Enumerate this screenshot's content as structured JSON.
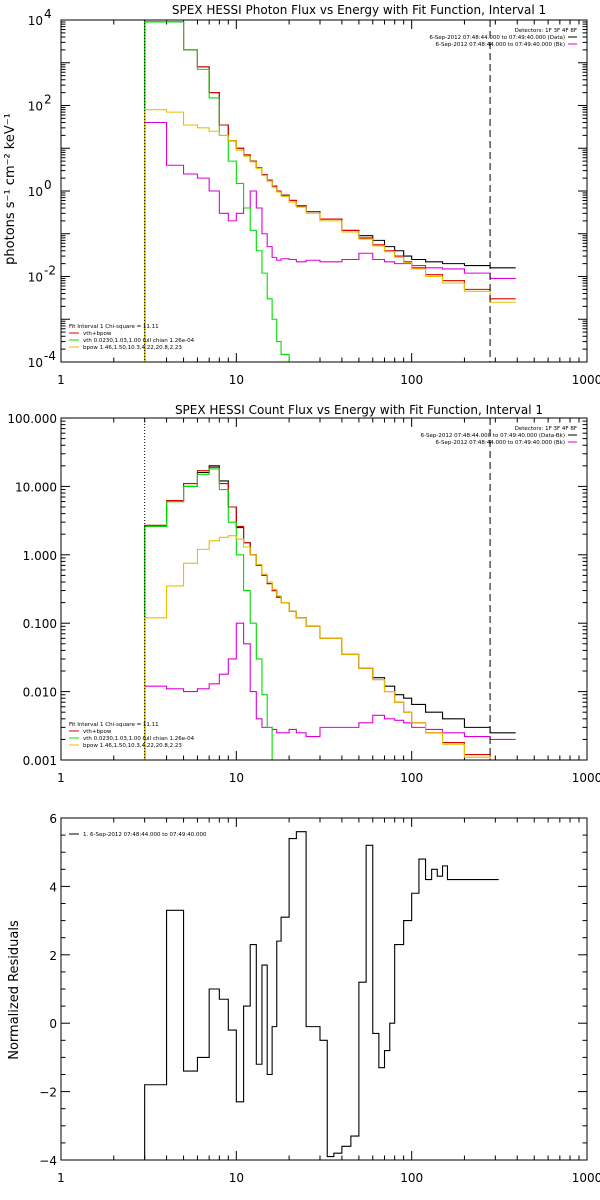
{
  "colors": {
    "total": "#000000",
    "vth_bpow": "#dd0000",
    "vth": "#00dd00",
    "bpow": "#e6c000",
    "background": "#dd00dd"
  },
  "chart_data": [
    {
      "type": "line",
      "title": "SPEX HESSI Photon Flux vs Energy with Fit Function, Interval 1",
      "ylabel": "photons s⁻¹ cm⁻² keV⁻¹",
      "xscale": "log",
      "yscale": "log",
      "xlim": [
        1,
        1000
      ],
      "ylim": [
        0.0001,
        10000
      ],
      "xticks": [
        {
          "v": 1,
          "t": "1"
        },
        {
          "v": 10,
          "t": "10"
        },
        {
          "v": 100,
          "t": "100"
        },
        {
          "v": 1000,
          "t": "1000"
        }
      ],
      "yticks": [
        {
          "v": 0.0001,
          "m": "10",
          "e": "-4"
        },
        {
          "v": 0.01,
          "m": "10",
          "e": "-2"
        },
        {
          "v": 1,
          "m": "10",
          "e": "0"
        },
        {
          "v": 100,
          "m": "10",
          "e": "2"
        },
        {
          "v": 10000,
          "m": "10",
          "e": "4"
        }
      ],
      "vlines": [
        {
          "x": 3,
          "style": "dotted",
          "color": "#000000"
        },
        {
          "x": 280,
          "style": "dashed",
          "color": "#000000"
        }
      ],
      "legend_right": {
        "header": "Detectors: 1F 3F 4F 8F",
        "entries": [
          {
            "text": "6-Sep-2012 07:48:44.000 to 07:49:40.000 (Data)",
            "color": "#000000"
          },
          {
            "text": "6-Sep-2012 07:48:44.000 to 07:49:40.000 (Bk)",
            "color": "#dd00dd"
          }
        ]
      },
      "legend_left": {
        "header": "Fit Interval 1    Chi-square = 11.11",
        "entries": [
          {
            "text": "vth+bpow",
            "color": "#dd0000"
          },
          {
            "text": "vth 0.0230,1.03,1.00  full chian 1.26e-04",
            "color": "#00dd00"
          },
          {
            "text": "bpow 1.46,1.50,10.3,4.22,20.8,2.23",
            "color": "#e6c000"
          }
        ]
      },
      "series": [
        {
          "key": "background",
          "x": [
            3,
            4,
            5,
            6,
            7,
            8,
            9,
            10,
            11,
            12,
            13,
            14,
            15,
            16,
            17,
            18,
            20,
            22,
            25,
            30,
            40,
            50,
            60,
            70,
            80,
            90,
            100,
            120,
            150,
            200,
            280
          ],
          "y": [
            40,
            4,
            2.5,
            2,
            1,
            0.3,
            0.2,
            0.3,
            0.4,
            1,
            0.4,
            0.1,
            0.05,
            0.028,
            0.024,
            0.026,
            0.025,
            0.022,
            0.024,
            0.022,
            0.025,
            0.035,
            0.025,
            0.022,
            0.02,
            0.02,
            0.018,
            0.016,
            0.015,
            0.012,
            0.009
          ]
        },
        {
          "key": "total",
          "x": [
            3,
            4,
            5,
            6,
            7,
            8,
            9,
            10,
            11,
            12,
            13,
            14,
            15,
            16,
            17,
            18,
            20,
            22,
            25,
            30,
            40,
            50,
            60,
            70,
            80,
            90,
            100,
            120,
            150,
            200,
            280
          ],
          "y": [
            9000,
            9000,
            2000,
            800,
            200,
            35,
            15,
            10,
            7,
            5,
            3.5,
            2.4,
            1.8,
            1.3,
            1.0,
            0.8,
            0.6,
            0.45,
            0.33,
            0.22,
            0.12,
            0.09,
            0.07,
            0.05,
            0.04,
            0.03,
            0.025,
            0.022,
            0.02,
            0.018,
            0.016
          ]
        },
        {
          "key": "vth_bpow",
          "x": [
            3,
            4,
            5,
            6,
            7,
            8,
            9,
            10,
            11,
            12,
            13,
            14,
            15,
            16,
            17,
            18,
            20,
            22,
            25,
            30,
            40,
            50,
            60,
            70,
            80,
            90,
            100,
            120,
            150,
            200,
            280
          ],
          "y": [
            9000,
            9000,
            2000,
            800,
            200,
            35,
            15,
            10,
            7,
            5,
            3.5,
            2.4,
            1.8,
            1.3,
            1.0,
            0.8,
            0.6,
            0.45,
            0.33,
            0.22,
            0.12,
            0.08,
            0.055,
            0.04,
            0.03,
            0.022,
            0.016,
            0.011,
            0.008,
            0.005,
            0.003
          ]
        },
        {
          "key": "vth",
          "x": [
            3,
            4,
            5,
            6,
            7,
            8,
            9,
            10,
            11,
            12,
            13,
            14,
            15,
            16,
            17,
            18,
            20
          ],
          "y": [
            9000,
            9000,
            2000,
            700,
            150,
            20,
            5,
            1.5,
            0.4,
            0.12,
            0.04,
            0.012,
            0.003,
            0.001,
            0.0003,
            0.00015,
            0.0001
          ]
        },
        {
          "key": "bpow",
          "x": [
            3,
            4,
            5,
            6,
            7,
            8,
            9,
            10,
            11,
            12,
            13,
            14,
            15,
            16,
            17,
            18,
            20,
            22,
            25,
            30,
            40,
            50,
            60,
            70,
            80,
            90,
            100,
            120,
            150,
            200,
            280
          ],
          "y": [
            80,
            70,
            35,
            30,
            25,
            20,
            15,
            9,
            6.5,
            4.8,
            3.4,
            2.3,
            1.7,
            1.2,
            0.95,
            0.75,
            0.55,
            0.42,
            0.3,
            0.2,
            0.11,
            0.075,
            0.052,
            0.038,
            0.028,
            0.021,
            0.015,
            0.01,
            0.007,
            0.0045,
            0.0025
          ]
        }
      ]
    },
    {
      "type": "line",
      "title": "SPEX HESSI Count Flux vs Energy with Fit Function, Interval 1",
      "ylabel": "",
      "xscale": "log",
      "yscale": "log",
      "xlim": [
        1,
        1000
      ],
      "ylim": [
        0.001,
        100
      ],
      "xticks": [
        {
          "v": 1,
          "t": "1"
        },
        {
          "v": 10,
          "t": "10"
        },
        {
          "v": 100,
          "t": "100"
        },
        {
          "v": 1000,
          "t": "1000"
        }
      ],
      "yticks": [
        {
          "v": 0.001,
          "t": "0.001"
        },
        {
          "v": 0.01,
          "t": "0.010"
        },
        {
          "v": 0.1,
          "t": "0.100"
        },
        {
          "v": 1,
          "t": "1.000"
        },
        {
          "v": 10,
          "t": "10.000"
        },
        {
          "v": 100,
          "t": "100.000"
        }
      ],
      "vlines": [
        {
          "x": 3,
          "style": "dotted",
          "color": "#000000"
        },
        {
          "x": 280,
          "style": "dashed",
          "color": "#000000"
        }
      ],
      "legend_right": {
        "header": "Detectors: 1F 3F 4F 8F",
        "entries": [
          {
            "text": "6-Sep-2012 07:48:44.000 to 07:49:40.000 (Data-Bk)",
            "color": "#000000"
          },
          {
            "text": "6-Sep-2012 07:48:44.000 to 07:49:40.000 (Bk)",
            "color": "#dd00dd"
          }
        ]
      },
      "legend_left": {
        "header": "Fit Interval 1    Chi-square = 11.11",
        "entries": [
          {
            "text": "vth+bpow",
            "color": "#dd0000"
          },
          {
            "text": "vth 0.0230,1.03,1.00  full chian 1.26e-04",
            "color": "#00dd00"
          },
          {
            "text": "bpow 1.46,1.50,10.3,4.22,20.8,2.23",
            "color": "#e6c000"
          }
        ]
      },
      "series": [
        {
          "key": "background",
          "x": [
            3,
            4,
            5,
            6,
            7,
            8,
            9,
            10,
            11,
            12,
            13,
            14,
            15,
            16,
            17,
            18,
            20,
            22,
            25,
            30,
            40,
            50,
            60,
            70,
            80,
            90,
            100,
            120,
            150,
            200,
            280
          ],
          "y": [
            0.012,
            0.011,
            0.01,
            0.011,
            0.013,
            0.018,
            0.03,
            0.1,
            0.05,
            0.01,
            0.004,
            0.003,
            0.003,
            0.0028,
            0.0025,
            0.0025,
            0.0028,
            0.0025,
            0.0022,
            0.003,
            0.003,
            0.0035,
            0.0045,
            0.004,
            0.0038,
            0.0035,
            0.003,
            0.0028,
            0.0025,
            0.0022,
            0.002
          ]
        },
        {
          "key": "total",
          "x": [
            3,
            4,
            5,
            6,
            7,
            8,
            9,
            10,
            11,
            12,
            13,
            14,
            15,
            16,
            17,
            18,
            20,
            22,
            25,
            30,
            40,
            50,
            60,
            70,
            80,
            90,
            100,
            120,
            150,
            200,
            280
          ],
          "y": [
            2.6,
            6,
            10,
            16,
            20,
            12,
            5,
            2.5,
            1.5,
            1.0,
            0.7,
            0.5,
            0.38,
            0.3,
            0.24,
            0.2,
            0.15,
            0.12,
            0.09,
            0.06,
            0.035,
            0.022,
            0.016,
            0.012,
            0.009,
            0.008,
            0.0065,
            0.005,
            0.004,
            0.003,
            0.0025
          ]
        },
        {
          "key": "vth_bpow",
          "x": [
            3,
            4,
            5,
            6,
            7,
            8,
            9,
            10,
            11,
            12,
            13,
            14,
            15,
            16,
            17,
            18,
            20,
            22,
            25,
            30,
            40,
            50,
            60,
            70,
            80,
            90,
            100,
            120,
            150,
            200,
            280
          ],
          "y": [
            2.7,
            6.2,
            11,
            17,
            19,
            11,
            5,
            2.6,
            1.5,
            1.0,
            0.7,
            0.5,
            0.38,
            0.3,
            0.24,
            0.2,
            0.15,
            0.12,
            0.09,
            0.06,
            0.035,
            0.022,
            0.015,
            0.01,
            0.007,
            0.005,
            0.0035,
            0.0025,
            0.0018,
            0.0012,
            0.0008
          ]
        },
        {
          "key": "vth",
          "x": [
            3,
            4,
            5,
            6,
            7,
            8,
            9,
            10,
            11,
            12,
            13,
            14,
            15,
            16
          ],
          "y": [
            2.6,
            6,
            10,
            15,
            18,
            9,
            3,
            1.0,
            0.3,
            0.1,
            0.03,
            0.009,
            0.003,
            0.0008
          ]
        },
        {
          "key": "bpow",
          "x": [
            3,
            4,
            5,
            6,
            7,
            8,
            9,
            10,
            11,
            12,
            13,
            14,
            15,
            16,
            17,
            18,
            20,
            22,
            25,
            30,
            40,
            50,
            60,
            70,
            80,
            90,
            100,
            120,
            150,
            200,
            280
          ],
          "y": [
            0.12,
            0.35,
            0.75,
            1.2,
            1.6,
            1.8,
            1.9,
            1.7,
            1.3,
            1.0,
            0.72,
            0.52,
            0.4,
            0.31,
            0.25,
            0.2,
            0.15,
            0.12,
            0.09,
            0.06,
            0.035,
            0.022,
            0.015,
            0.01,
            0.007,
            0.005,
            0.0035,
            0.0025,
            0.0017,
            0.0011,
            0.0007
          ]
        }
      ]
    },
    {
      "type": "line",
      "title": "",
      "ylabel": "Normalized Residuals",
      "xscale": "log",
      "yscale": "linear",
      "xlim": [
        1,
        1000
      ],
      "ylim": [
        -4,
        6
      ],
      "xticks": [
        {
          "v": 1,
          "t": "1"
        },
        {
          "v": 10,
          "t": "10"
        },
        {
          "v": 100,
          "t": "100"
        },
        {
          "v": 1000,
          "t": "1000"
        }
      ],
      "yticks": [
        {
          "v": -4,
          "t": "−4"
        },
        {
          "v": -2,
          "t": "−2"
        },
        {
          "v": 0,
          "t": "0"
        },
        {
          "v": 2,
          "t": "2"
        },
        {
          "v": 4,
          "t": "4"
        },
        {
          "v": 6,
          "t": "6"
        }
      ],
      "vlines": [],
      "legend_right": null,
      "legend_left": {
        "header": "",
        "entries": [
          {
            "text": "1.  6-Sep-2012 07:48:44.000 to 07:49:40.000",
            "color": "#000000"
          }
        ]
      },
      "series": [
        {
          "key": "residuals",
          "color": "#000000",
          "x": [
            3,
            4,
            5,
            6,
            7,
            8,
            9,
            10,
            11,
            12,
            13,
            14,
            15,
            16,
            17,
            18,
            20,
            22,
            25,
            30,
            33,
            36,
            40,
            45,
            50,
            55,
            60,
            65,
            70,
            75,
            80,
            90,
            100,
            110,
            120,
            130,
            140,
            150,
            160,
            170,
            180,
            200,
            220,
            250,
            280
          ],
          "y": [
            -1.8,
            3.3,
            -1.4,
            -1.0,
            1.0,
            0.7,
            -0.2,
            -2.3,
            0.5,
            2.3,
            -1.2,
            1.7,
            -1.5,
            -0.1,
            2.4,
            3.1,
            5.4,
            5.6,
            -0.1,
            -0.5,
            -3.9,
            -3.8,
            -3.6,
            -3.3,
            1.2,
            5.2,
            -0.3,
            -1.3,
            -0.8,
            0.0,
            2.3,
            3.0,
            3.8,
            4.8,
            4.2,
            4.5,
            4.3,
            4.6,
            4.2,
            4.2,
            4.2,
            4.2,
            4.2,
            4.2,
            4.2
          ]
        }
      ]
    }
  ]
}
